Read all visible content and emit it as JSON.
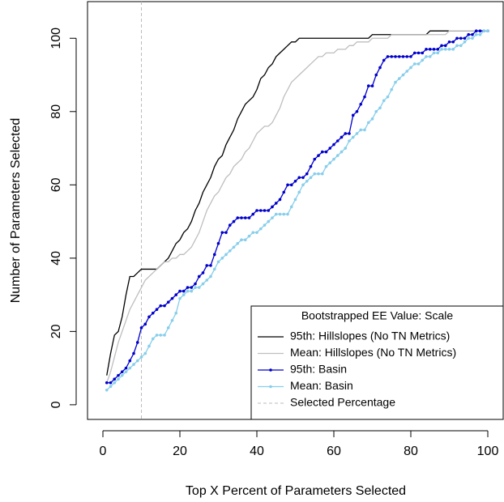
{
  "chart_data": {
    "type": "line",
    "x_label": "Top X Percent of Parameters Selected",
    "y_label": "Number of Parameters Selected",
    "x": [
      1,
      2,
      3,
      4,
      5,
      6,
      7,
      8,
      9,
      10,
      11,
      12,
      13,
      14,
      15,
      16,
      17,
      18,
      19,
      20,
      21,
      22,
      23,
      24,
      25,
      26,
      27,
      28,
      29,
      30,
      31,
      32,
      33,
      34,
      35,
      36,
      37,
      38,
      39,
      40,
      41,
      42,
      43,
      44,
      45,
      46,
      47,
      48,
      49,
      50,
      51,
      52,
      53,
      54,
      55,
      56,
      57,
      58,
      59,
      60,
      61,
      62,
      63,
      64,
      65,
      66,
      67,
      68,
      69,
      70,
      71,
      72,
      73,
      74,
      75,
      76,
      77,
      78,
      79,
      80,
      81,
      82,
      83,
      84,
      85,
      86,
      87,
      88,
      89,
      90,
      91,
      92,
      93,
      94,
      95,
      96,
      97,
      98,
      99,
      100
    ],
    "series": [
      {
        "name": "95th: Hillslopes (No TN Metrics)",
        "color": "#000000",
        "markers": false,
        "values": [
          8,
          14,
          19,
          20,
          24,
          30,
          35,
          35,
          36,
          37,
          37,
          37,
          37,
          37,
          38,
          39,
          40,
          42,
          44,
          45,
          47,
          48,
          50,
          53,
          55,
          58,
          60,
          62,
          65,
          67,
          68,
          71,
          73,
          75,
          78,
          80,
          82,
          83,
          84,
          86,
          89,
          90,
          92,
          93,
          95,
          96,
          97,
          98,
          99,
          99,
          100,
          100,
          100,
          100,
          100,
          100,
          100,
          100,
          100,
          100,
          100,
          100,
          100,
          100,
          100,
          100,
          100,
          100,
          100,
          101,
          101,
          101,
          101,
          101,
          101,
          101,
          101,
          101,
          101,
          101,
          101,
          101,
          101,
          101,
          102,
          102,
          102,
          102,
          102,
          102,
          102,
          102,
          102,
          102,
          102,
          102,
          102,
          102,
          102,
          102
        ]
      },
      {
        "name": "Mean: Hillslopes (No TN Metrics)",
        "color": "#bebebe",
        "markers": false,
        "values": [
          6,
          9,
          13,
          17,
          20,
          23,
          26,
          28,
          30,
          32,
          34,
          35,
          36,
          37,
          38,
          39,
          39,
          40,
          40,
          41,
          41,
          42,
          43,
          45,
          47,
          50,
          53,
          55,
          57,
          58,
          60,
          62,
          63,
          65,
          66,
          67,
          69,
          70,
          72,
          74,
          75,
          76,
          76,
          77,
          79,
          81,
          84,
          86,
          88,
          89,
          90,
          91,
          92,
          93,
          94,
          95,
          95,
          96,
          96,
          96,
          97,
          97,
          97,
          98,
          98,
          99,
          99,
          99,
          99,
          100,
          100,
          100,
          100,
          100,
          101,
          101,
          101,
          101,
          101,
          101,
          101,
          101,
          101,
          101,
          101,
          101,
          101,
          101,
          101,
          102,
          102,
          102,
          102,
          102,
          102,
          102,
          102,
          102,
          102,
          102
        ]
      },
      {
        "name": "95th: Basin",
        "color": "#0000cd",
        "markers": true,
        "values": [
          6,
          6,
          7,
          8,
          9,
          10,
          12,
          14,
          17,
          21,
          22,
          24,
          25,
          26,
          27,
          27,
          28,
          29,
          30,
          31,
          31,
          32,
          32,
          33,
          35,
          36,
          38,
          38,
          41,
          44,
          47,
          47,
          49,
          50,
          51,
          51,
          51,
          51,
          52,
          53,
          53,
          53,
          53,
          54,
          55,
          56,
          58,
          60,
          60,
          61,
          62,
          62,
          63,
          65,
          67,
          68,
          69,
          69,
          70,
          71,
          72,
          73,
          74,
          74,
          79,
          80,
          82,
          84,
          87,
          87,
          90,
          92,
          94,
          95,
          95,
          95,
          95,
          95,
          95,
          95,
          96,
          96,
          96,
          97,
          97,
          97,
          97,
          98,
          98,
          99,
          99,
          100,
          100,
          100,
          101,
          101,
          102,
          102,
          102,
          102
        ]
      },
      {
        "name": "Mean: Basin",
        "color": "#87ceeb",
        "markers": true,
        "values": [
          4,
          5,
          6,
          7,
          8,
          9,
          10,
          11,
          12,
          13,
          14,
          16,
          18,
          19,
          19,
          19,
          21,
          23,
          25,
          29,
          30,
          31,
          31,
          32,
          32,
          33,
          34,
          35,
          37,
          39,
          40,
          41,
          42,
          43,
          44,
          45,
          45,
          46,
          47,
          47,
          48,
          49,
          50,
          51,
          52,
          52,
          52,
          52,
          54,
          56,
          58,
          60,
          61,
          62,
          63,
          63,
          63,
          65,
          66,
          67,
          68,
          69,
          70,
          72,
          73,
          74,
          75,
          75,
          77,
          78,
          80,
          81,
          83,
          84,
          86,
          88,
          89,
          90,
          91,
          92,
          93,
          93,
          94,
          95,
          95,
          96,
          96,
          97,
          97,
          97,
          97,
          98,
          98,
          99,
          100,
          100,
          101,
          101,
          102,
          102
        ]
      }
    ],
    "vline": {
      "x": 10,
      "name": "Selected Percentage",
      "color": "#bbbbbb"
    },
    "legend_title": "Bootstrapped EE Value: Scale",
    "legend": "bottom-right",
    "xlim": [
      -4,
      104
    ],
    "xticks": [
      0,
      20,
      40,
      60,
      80,
      100
    ],
    "ylim": [
      -4,
      110
    ],
    "yticks": [
      0,
      20,
      40,
      60,
      80,
      100
    ]
  }
}
